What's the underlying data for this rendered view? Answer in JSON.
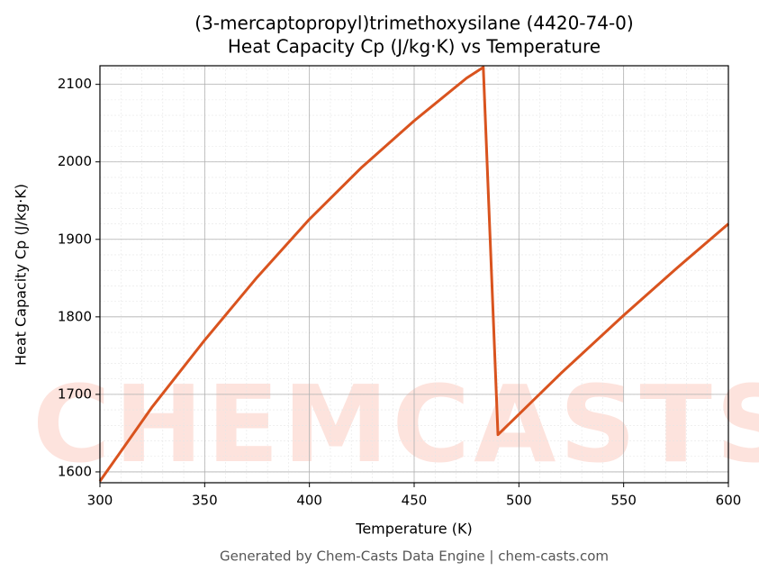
{
  "chart_data": {
    "type": "line",
    "title": "(3-mercaptopropyl)trimethoxysilane (4420-74-0)",
    "subtitle": "Heat Capacity Cp (J/kg·K) vs Temperature",
    "x_label": "Temperature (K)",
    "y_label": "Heat Capacity Cp (J/kg·K)",
    "footer": "Generated by Chem-Casts Data Engine | chem-casts.com",
    "watermark": "CHEMCASTS",
    "x": [
      300,
      325,
      350,
      375,
      400,
      425,
      450,
      475,
      483,
      490,
      520,
      550,
      575,
      600
    ],
    "series": [
      {
        "name": "Heat Capacity Cp",
        "color": "#d9531e",
        "values": [
          1588,
          1684,
          1770,
          1851,
          1926,
          1993,
          2053,
          2108,
          2122,
          1648,
          1727,
          1802,
          1862,
          1920
        ]
      }
    ],
    "xlim": [
      300,
      600
    ],
    "xticks": [
      300,
      350,
      400,
      450,
      500,
      550,
      600
    ],
    "ylim": [
      1586,
      2124
    ],
    "yticks": [
      1600,
      1700,
      1800,
      1900,
      2000,
      2100
    ],
    "grid": true,
    "x_minor_step": 10,
    "y_minor_step": 20
  }
}
